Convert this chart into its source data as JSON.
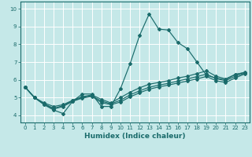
{
  "title": "",
  "xlabel": "Humidex (Indice chaleur)",
  "background_color": "#c5e8e8",
  "grid_color": "#ffffff",
  "line_color": "#1a6b6b",
  "xlim": [
    -0.5,
    23.5
  ],
  "ylim": [
    3.6,
    10.4
  ],
  "xticks": [
    0,
    1,
    2,
    3,
    4,
    5,
    6,
    7,
    8,
    9,
    10,
    11,
    12,
    13,
    14,
    15,
    16,
    17,
    18,
    19,
    20,
    21,
    22,
    23
  ],
  "yticks": [
    4,
    5,
    6,
    7,
    8,
    9,
    10
  ],
  "series": [
    {
      "x": [
        0,
        1,
        2,
        3,
        4,
        5,
        6,
        7,
        8,
        9,
        10,
        11,
        12,
        13,
        14,
        15,
        16,
        17,
        18,
        19,
        20,
        21,
        22,
        23
      ],
      "y": [
        5.6,
        5.0,
        4.6,
        4.3,
        4.1,
        4.8,
        5.2,
        5.2,
        4.5,
        4.5,
        5.5,
        6.9,
        8.5,
        9.7,
        8.85,
        8.8,
        8.1,
        7.75,
        7.0,
        6.25,
        6.1,
        6.0,
        6.3,
        6.4
      ]
    },
    {
      "x": [
        0,
        1,
        2,
        3,
        4,
        5,
        6,
        7,
        8,
        9,
        10,
        11,
        12,
        13,
        14,
        15,
        16,
        17,
        18,
        19,
        20,
        21,
        22,
        23
      ],
      "y": [
        5.6,
        5.0,
        4.7,
        4.5,
        4.6,
        4.85,
        5.05,
        5.15,
        4.9,
        4.7,
        5.0,
        5.3,
        5.55,
        5.75,
        5.85,
        5.95,
        6.1,
        6.2,
        6.35,
        6.5,
        6.2,
        6.05,
        6.3,
        6.42
      ]
    },
    {
      "x": [
        0,
        1,
        2,
        3,
        4,
        5,
        6,
        7,
        8,
        9,
        10,
        11,
        12,
        13,
        14,
        15,
        16,
        17,
        18,
        19,
        20,
        21,
        22,
        23
      ],
      "y": [
        5.6,
        5.0,
        4.65,
        4.4,
        4.55,
        4.82,
        5.0,
        5.1,
        4.8,
        4.65,
        4.85,
        5.15,
        5.38,
        5.58,
        5.7,
        5.8,
        5.93,
        6.05,
        6.18,
        6.32,
        6.06,
        5.95,
        6.2,
        6.37
      ]
    },
    {
      "x": [
        0,
        1,
        2,
        3,
        4,
        5,
        6,
        7,
        8,
        9,
        10,
        11,
        12,
        13,
        14,
        15,
        16,
        17,
        18,
        19,
        20,
        21,
        22,
        23
      ],
      "y": [
        5.6,
        5.0,
        4.62,
        4.35,
        4.5,
        4.79,
        4.97,
        5.07,
        4.72,
        4.6,
        4.75,
        5.04,
        5.27,
        5.47,
        5.6,
        5.7,
        5.82,
        5.93,
        6.05,
        6.19,
        5.95,
        5.85,
        6.1,
        6.33
      ]
    }
  ]
}
